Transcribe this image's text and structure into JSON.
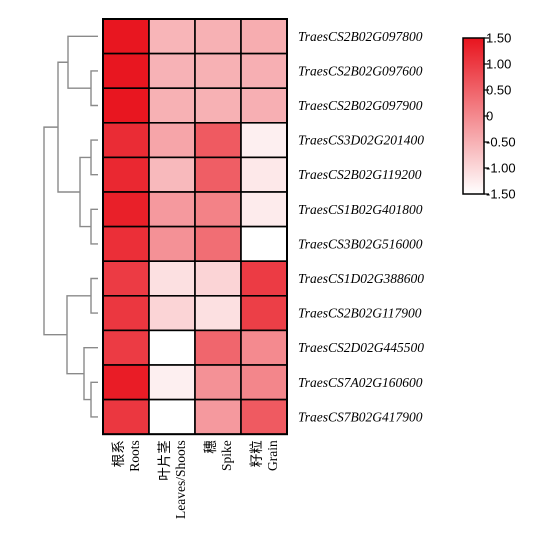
{
  "chart_data": {
    "type": "heatmap",
    "rows": [
      "TraesCS2B02G097800",
      "TraesCS2B02G097600",
      "TraesCS2B02G097900",
      "TraesCS3D02G201400",
      "TraesCS2B02G119200",
      "TraesCS1B02G401800",
      "TraesCS3B02G516000",
      "TraesCS1D02G388600",
      "TraesCS2B02G117900",
      "TraesCS2D02G445500",
      "TraesCS7A02G160600",
      "TraesCS7B02G417900"
    ],
    "columns": [
      {
        "zh": "根系",
        "en": "Roots"
      },
      {
        "zh": "叶片茎",
        "en": "Leaves/Shoots"
      },
      {
        "zh": "穗",
        "en": "Spike"
      },
      {
        "zh": "籽粒",
        "en": "Grain"
      }
    ],
    "values": [
      [
        1.48,
        -0.55,
        -0.5,
        -0.45
      ],
      [
        1.48,
        -0.52,
        -0.5,
        -0.48
      ],
      [
        1.48,
        -0.5,
        -0.5,
        -0.48
      ],
      [
        1.2,
        -0.35,
        0.6,
        -1.3
      ],
      [
        1.25,
        -0.6,
        0.55,
        -1.2
      ],
      [
        1.35,
        -0.2,
        0.1,
        -1.25
      ],
      [
        1.15,
        -0.1,
        0.35,
        -1.5
      ],
      [
        1.0,
        -1.1,
        -0.95,
        1.0
      ],
      [
        1.05,
        -0.95,
        -1.1,
        0.95
      ],
      [
        1.0,
        -1.5,
        0.45,
        0.0
      ],
      [
        1.4,
        -1.3,
        -0.1,
        0.05
      ],
      [
        1.05,
        -1.5,
        -0.2,
        0.6
      ]
    ],
    "colorscale": {
      "min": -1.5,
      "max": 1.5,
      "low_color": "#ffffff",
      "high_color": "#e8141e"
    },
    "colorbar_ticks": [
      "1.50",
      "1.00",
      "0.50",
      "0",
      "-0.50",
      "-1.00",
      "-1.50"
    ],
    "dendrogram": "rows"
  }
}
